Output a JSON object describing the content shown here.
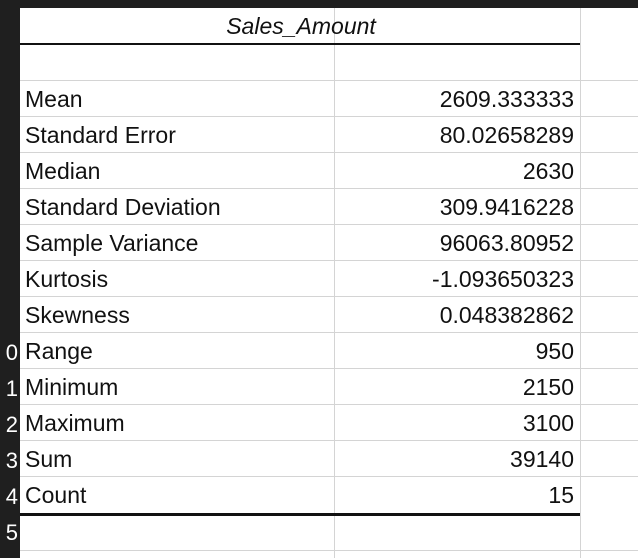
{
  "header": {
    "title": "Sales_Amount"
  },
  "row_numbers": [
    "0",
    "1",
    "2",
    "3",
    "4",
    "5"
  ],
  "stats": [
    {
      "label": "Mean",
      "value": "2609.333333"
    },
    {
      "label": "Standard Error",
      "value": "80.02658289"
    },
    {
      "label": "Median",
      "value": "2630"
    },
    {
      "label": "Standard Deviation",
      "value": "309.9416228"
    },
    {
      "label": "Sample Variance",
      "value": "96063.80952"
    },
    {
      "label": "Kurtosis",
      "value": "-1.093650323"
    },
    {
      "label": "Skewness",
      "value": "0.048382862"
    },
    {
      "label": "Range",
      "value": "950"
    },
    {
      "label": "Minimum",
      "value": "2150"
    },
    {
      "label": "Maximum",
      "value": "3100"
    },
    {
      "label": "Sum",
      "value": "39140"
    },
    {
      "label": "Count",
      "value": "15"
    }
  ]
}
